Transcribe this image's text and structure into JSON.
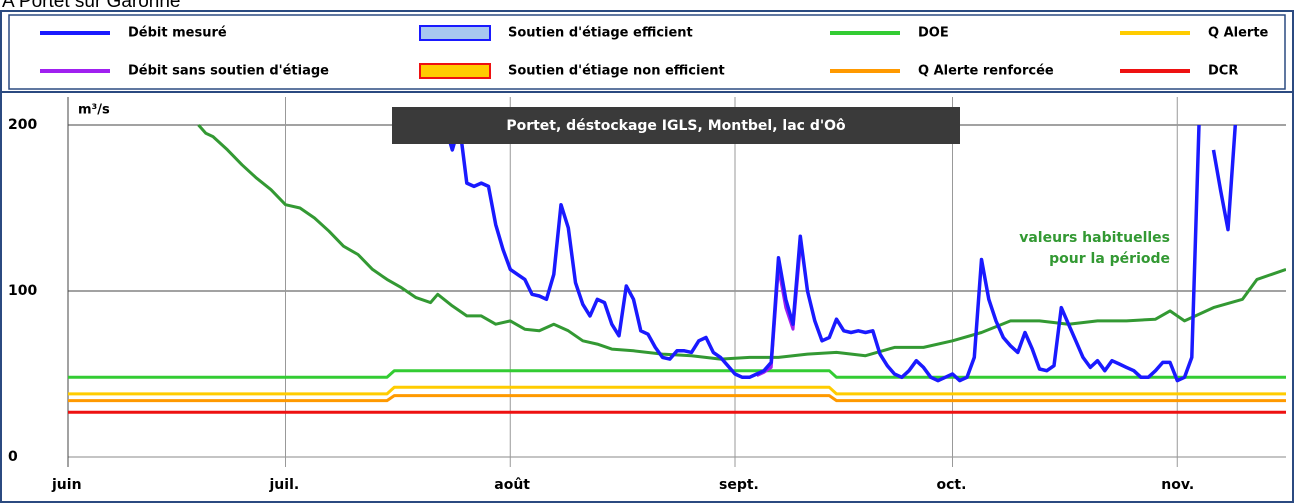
{
  "chart_data": {
    "type": "line",
    "title": "A Portet sur Garonne",
    "annotation_box": "Portet, déstockage IGLS, Montbel, lac d'Oô",
    "y_unit": "m³/s",
    "annotations": {
      "lines": [
        "valeurs habituelles",
        "pour la période"
      ],
      "color": "#339933"
    },
    "xlim": [
      0,
      168
    ],
    "xticks": [
      {
        "value": 0,
        "label": "juin"
      },
      {
        "value": 30,
        "label": "juil."
      },
      {
        "value": 61,
        "label": "août"
      },
      {
        "value": 92,
        "label": "sept."
      },
      {
        "value": 122,
        "label": "oct."
      },
      {
        "value": 153,
        "label": "nov."
      }
    ],
    "ylim": [
      0,
      200
    ],
    "yticks": [
      0,
      100,
      200
    ],
    "grid": true,
    "support": [
      {
        "name": "Soutien d'étiage efficient",
        "fill": "#a8c8f0",
        "stroke": "#1a1aff"
      },
      {
        "name": "Soutien d'étiage non efficient",
        "fill": "#ffcc00",
        "stroke": "#ee1111"
      }
    ],
    "series": [
      {
        "name": "Débit mesuré",
        "color": "#1a1aff",
        "x": [
          52,
          53,
          54,
          55,
          56,
          57,
          58,
          59,
          60,
          61,
          62,
          63,
          64,
          65,
          66,
          67,
          68,
          69,
          70,
          71,
          72,
          73,
          74,
          75,
          76,
          77,
          78,
          79,
          80,
          81,
          82,
          83,
          84,
          85,
          86,
          87,
          88,
          89,
          90,
          91,
          92,
          93,
          94,
          95,
          96,
          97,
          98,
          99,
          100,
          101,
          102,
          103,
          104,
          105,
          106,
          107,
          108,
          109,
          110,
          111,
          112,
          113,
          114,
          115,
          116,
          117,
          118,
          119,
          120,
          121,
          122,
          123,
          124,
          125,
          126,
          127,
          128,
          129,
          130,
          131,
          132,
          133,
          134,
          135,
          136,
          137,
          138,
          139,
          140,
          141,
          142,
          143,
          144,
          145,
          146,
          147,
          148,
          149,
          150,
          151,
          152,
          153,
          154,
          155,
          156,
          157,
          158,
          159,
          160,
          161
        ],
        "values": [
          200,
          185,
          200,
          165,
          163,
          165,
          163,
          140,
          125,
          113,
          110,
          107,
          98,
          97,
          95,
          110,
          152,
          138,
          105,
          92,
          85,
          95,
          93,
          80,
          73,
          103,
          95,
          76,
          74,
          66,
          60,
          59,
          64,
          64,
          63,
          70,
          72,
          63,
          60,
          55,
          50,
          48,
          48,
          50,
          52,
          57,
          120,
          95,
          80,
          133,
          100,
          82,
          70,
          72,
          83,
          76,
          75,
          76,
          75,
          76,
          62,
          55,
          50,
          48,
          52,
          58,
          54,
          48,
          46,
          48,
          50,
          46,
          48,
          60,
          119,
          95,
          82,
          72,
          67,
          63,
          75,
          65,
          53,
          52,
          55,
          90,
          80,
          70,
          60,
          54,
          58,
          52,
          58,
          56,
          54,
          52,
          48,
          48,
          52,
          57,
          57,
          46,
          48,
          60,
          200,
          null,
          185,
          160,
          137,
          200
        ]
      },
      {
        "name": "Débit sans soutien d'étiage",
        "color": "#a020f0",
        "x": [
          95,
          96,
          97,
          98,
          99,
          100,
          101
        ],
        "values": [
          49,
          51,
          54,
          114,
          90,
          77,
          126
        ]
      },
      {
        "name": "DOE",
        "color": "#33cc33",
        "x": [
          0,
          44,
          45,
          105,
          106,
          168
        ],
        "values": [
          48,
          48,
          52,
          52,
          48,
          48
        ]
      },
      {
        "name": "Q Alerte renforcée",
        "color": "#ff9900",
        "x": [
          0,
          44,
          45,
          105,
          106,
          168
        ],
        "values": [
          34,
          34,
          37,
          37,
          34,
          34
        ]
      },
      {
        "name": "Q Alerte",
        "color": "#ffcc00",
        "x": [
          0,
          44,
          45,
          105,
          106,
          168
        ],
        "values": [
          38,
          38,
          42,
          42,
          38,
          38
        ]
      },
      {
        "name": "DCR",
        "color": "#ee1111",
        "x": [
          0,
          168
        ],
        "values": [
          27,
          27
        ]
      },
      {
        "color": "#339933",
        "x": [
          18,
          19,
          20,
          22,
          24,
          26,
          28,
          30,
          32,
          34,
          36,
          38,
          40,
          42,
          44,
          46,
          48,
          50,
          51,
          53,
          55,
          57,
          59,
          61,
          63,
          65,
          67,
          69,
          71,
          73,
          75,
          78,
          82,
          86,
          90,
          94,
          98,
          102,
          106,
          110,
          114,
          118,
          122,
          126,
          130,
          134,
          138,
          142,
          146,
          150,
          152,
          154,
          158,
          162,
          164,
          166,
          168
        ],
        "values": [
          200,
          195,
          193,
          185,
          176,
          168,
          161,
          152,
          150,
          144,
          136,
          127,
          122,
          113,
          107,
          102,
          96,
          93,
          98,
          91,
          85,
          85,
          80,
          82,
          77,
          76,
          80,
          76,
          70,
          68,
          65,
          64,
          62,
          61,
          59,
          60,
          60,
          62,
          63,
          61,
          66,
          66,
          70,
          75,
          82,
          82,
          80,
          82,
          82,
          83,
          88,
          82,
          90,
          95,
          107,
          110,
          113
        ]
      }
    ]
  }
}
